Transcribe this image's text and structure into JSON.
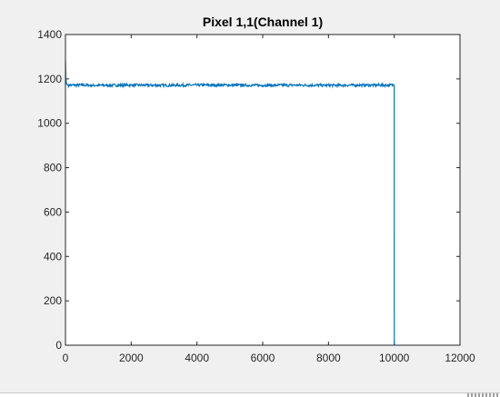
{
  "window": {
    "background_color": "#f0f0f0"
  },
  "chart_data": {
    "type": "line",
    "title": "Pixel 1,1(Channel 1)",
    "xlabel": "",
    "ylabel": "",
    "xlim": [
      0,
      12000
    ],
    "ylim": [
      0,
      1400
    ],
    "xticks": [
      0,
      2000,
      4000,
      6000,
      8000,
      10000,
      12000
    ],
    "yticks": [
      0,
      200,
      400,
      600,
      800,
      1000,
      1200,
      1400
    ],
    "xtick_labels": [
      "0",
      "2000",
      "4000",
      "6000",
      "8000",
      "10000",
      "12000"
    ],
    "ytick_labels": [
      "0",
      "200",
      "400",
      "600",
      "800",
      "1000",
      "1200",
      "1400"
    ],
    "grid": false,
    "legend": "none",
    "series": [
      {
        "color": "#0072bd",
        "points": [
          [
            1,
            1280
          ],
          [
            5,
            1250
          ],
          [
            10,
            1215
          ],
          [
            20,
            1190
          ],
          [
            40,
            1176
          ],
          [
            80,
            1172
          ],
          [
            500,
            1172
          ],
          [
            1000,
            1171
          ],
          [
            2000,
            1172
          ],
          [
            3000,
            1171
          ],
          [
            4000,
            1172
          ],
          [
            5000,
            1172
          ],
          [
            6000,
            1171
          ],
          [
            7000,
            1172
          ],
          [
            8000,
            1171
          ],
          [
            9000,
            1172
          ],
          [
            9990,
            1172
          ],
          [
            10000,
            1170
          ],
          [
            10001,
            0
          ]
        ],
        "noise_amplitude": 6,
        "noise_x_range": [
          80,
          9990
        ]
      }
    ]
  }
}
